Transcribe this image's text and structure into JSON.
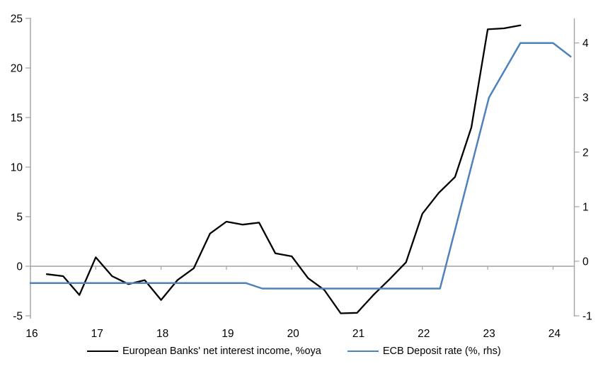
{
  "chart_data": {
    "type": "line",
    "title": "",
    "xlabel": "",
    "ylabel_left": "",
    "ylabel_right": "",
    "grid": "off",
    "legend_position": "bottom",
    "x_axis": {
      "range": [
        16,
        24.33
      ],
      "ticks": [
        16,
        17,
        18,
        19,
        20,
        21,
        22,
        23,
        24
      ],
      "tick_labels": [
        "16",
        "17",
        "18",
        "19",
        "20",
        "21",
        "22",
        "23",
        "24"
      ]
    },
    "left_axis": {
      "range": [
        -5,
        25
      ],
      "ticks": [
        -5,
        0,
        5,
        10,
        15,
        20,
        25
      ],
      "tick_labels": [
        "-5",
        "0",
        "5",
        "10",
        "15",
        "20",
        "25"
      ]
    },
    "right_axis": {
      "range": [
        -1,
        4.45
      ],
      "ticks": [
        -1,
        0,
        1,
        2,
        3,
        4
      ],
      "tick_labels": [
        "-1",
        "0",
        "1",
        "2",
        "3",
        "4"
      ]
    },
    "colors": {
      "axis_gray": "#a3a3a3",
      "series_black": "#000000",
      "series_blue": "#4f81bd"
    },
    "series": [
      {
        "name": "European Banks' net interest income, %oya",
        "axis": "left",
        "color": "#000000",
        "x": [
          16.25,
          16.5,
          16.75,
          17.0,
          17.25,
          17.5,
          17.75,
          18.0,
          18.25,
          18.5,
          18.75,
          19.0,
          19.25,
          19.5,
          19.75,
          20.0,
          20.25,
          20.5,
          20.75,
          21.0,
          21.25,
          21.5,
          21.75,
          22.0,
          22.25,
          22.5,
          22.75,
          23.0,
          23.25,
          23.5
        ],
        "y": [
          -0.8,
          -1.0,
          -2.9,
          0.9,
          -1.0,
          -1.8,
          -1.4,
          -3.4,
          -1.4,
          -0.2,
          3.3,
          4.5,
          4.2,
          4.4,
          1.3,
          1.0,
          -1.2,
          -2.4,
          -4.75,
          -4.7,
          -2.9,
          -1.3,
          0.4,
          5.3,
          7.4,
          9.0,
          14.0,
          23.9,
          24.0,
          24.3
        ]
      },
      {
        "name": "ECB Deposit rate (%, rhs)",
        "axis": "right",
        "color": "#4f81bd",
        "x": [
          16.0,
          19.3,
          19.55,
          22.27,
          23.02,
          23.5,
          24.0,
          24.27
        ],
        "y": [
          -0.4,
          -0.4,
          -0.5,
          -0.5,
          3.0,
          4.0,
          4.0,
          3.75
        ]
      }
    ]
  }
}
